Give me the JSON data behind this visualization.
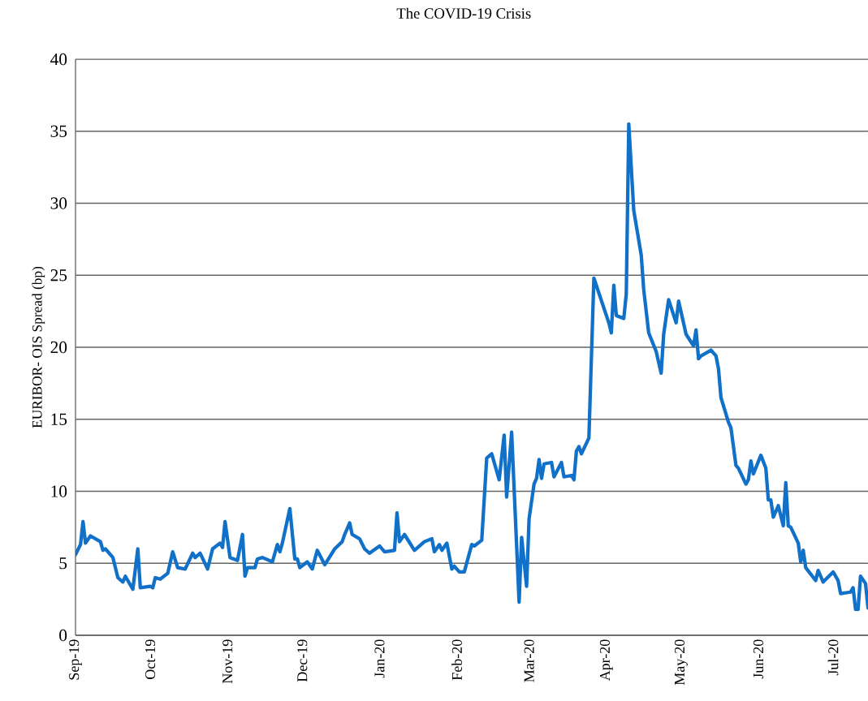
{
  "chart_data": {
    "type": "line",
    "title": "The COVID-19 Crisis",
    "ylabel": "EURIBOR- OIS Spread (bp)",
    "x": [
      "2019-09-01",
      "2019-09-03",
      "2019-09-04",
      "2019-09-05",
      "2019-09-07",
      "2019-09-10",
      "2019-09-11",
      "2019-09-12",
      "2019-09-13",
      "2019-09-16",
      "2019-09-18",
      "2019-09-20",
      "2019-09-21",
      "2019-09-24",
      "2019-09-26",
      "2019-09-27",
      "2019-10-01",
      "2019-10-02",
      "2019-10-03",
      "2019-10-05",
      "2019-10-08",
      "2019-10-10",
      "2019-10-12",
      "2019-10-15",
      "2019-10-18",
      "2019-10-19",
      "2019-10-21",
      "2019-10-24",
      "2019-10-26",
      "2019-10-29",
      "2019-10-30",
      "2019-10-31",
      "2019-11-02",
      "2019-11-05",
      "2019-11-07",
      "2019-11-08",
      "2019-11-09",
      "2019-11-12",
      "2019-11-13",
      "2019-11-15",
      "2019-11-19",
      "2019-11-21",
      "2019-11-22",
      "2019-11-23",
      "2019-11-26",
      "2019-11-28",
      "2019-11-29",
      "2019-11-30",
      "2019-12-03",
      "2019-12-05",
      "2019-12-07",
      "2019-12-10",
      "2019-12-14",
      "2019-12-17",
      "2019-12-18",
      "2019-12-20",
      "2019-12-21",
      "2019-12-24",
      "2019-12-26",
      "2019-12-28",
      "2020-01-01",
      "2020-01-03",
      "2020-01-07",
      "2020-01-08",
      "2020-01-09",
      "2020-01-11",
      "2020-01-15",
      "2020-01-19",
      "2020-01-22",
      "2020-01-23",
      "2020-01-25",
      "2020-01-26",
      "2020-01-28",
      "2020-01-30",
      "2020-01-31",
      "2020-02-02",
      "2020-02-04",
      "2020-02-07",
      "2020-02-08",
      "2020-02-11",
      "2020-02-13",
      "2020-02-15",
      "2020-02-18",
      "2020-02-20",
      "2020-02-21",
      "2020-02-23",
      "2020-02-26",
      "2020-02-27",
      "2020-02-29",
      "2020-03-01",
      "2020-03-03",
      "2020-03-04",
      "2020-03-05",
      "2020-03-06",
      "2020-03-07",
      "2020-03-10",
      "2020-03-11",
      "2020-03-14",
      "2020-03-15",
      "2020-03-18",
      "2020-03-19",
      "2020-03-20",
      "2020-03-21",
      "2020-03-22",
      "2020-03-25",
      "2020-03-27",
      "2020-04-02",
      "2020-04-03",
      "2020-04-04",
      "2020-04-05",
      "2020-04-08",
      "2020-04-09",
      "2020-04-10",
      "2020-04-12",
      "2020-04-15",
      "2020-04-16",
      "2020-04-18",
      "2020-04-21",
      "2020-04-23",
      "2020-04-24",
      "2020-04-26",
      "2020-04-29",
      "2020-04-30",
      "2020-05-03",
      "2020-05-06",
      "2020-05-07",
      "2020-05-08",
      "2020-05-09",
      "2020-05-13",
      "2020-05-15",
      "2020-05-16",
      "2020-05-17",
      "2020-05-20",
      "2020-05-21",
      "2020-05-23",
      "2020-05-24",
      "2020-05-27",
      "2020-05-28",
      "2020-05-29",
      "2020-05-30",
      "2020-06-02",
      "2020-06-04",
      "2020-06-05",
      "2020-06-06",
      "2020-06-07",
      "2020-06-09",
      "2020-06-11",
      "2020-06-12",
      "2020-06-13",
      "2020-06-14",
      "2020-06-17",
      "2020-06-18",
      "2020-06-19",
      "2020-06-20",
      "2020-06-24",
      "2020-06-25",
      "2020-06-27",
      "2020-07-01",
      "2020-07-03",
      "2020-07-04",
      "2020-07-08",
      "2020-07-09",
      "2020-07-10",
      "2020-07-11",
      "2020-07-12",
      "2020-07-14",
      "2020-07-15"
    ],
    "series": [
      {
        "color": "#1170c8",
        "values": [
          5.6,
          6.3,
          7.9,
          6.4,
          6.9,
          6.6,
          6.5,
          5.9,
          6.0,
          5.4,
          4.0,
          3.7,
          4.1,
          3.2,
          6.0,
          3.3,
          3.4,
          3.3,
          4.0,
          3.9,
          4.3,
          5.8,
          4.7,
          4.6,
          5.7,
          5.4,
          5.7,
          4.6,
          6.0,
          6.4,
          6.1,
          7.9,
          5.4,
          5.2,
          7.0,
          4.1,
          4.7,
          4.7,
          5.3,
          5.4,
          5.1,
          6.3,
          5.8,
          6.4,
          8.8,
          5.3,
          5.3,
          4.7,
          5.1,
          4.6,
          5.9,
          4.9,
          6.0,
          6.5,
          7.0,
          7.8,
          7.0,
          6.7,
          6.0,
          5.7,
          6.2,
          5.8,
          5.9,
          8.5,
          6.5,
          7.0,
          5.9,
          6.5,
          6.7,
          5.8,
          6.3,
          5.9,
          6.4,
          4.6,
          4.8,
          4.4,
          4.4,
          6.3,
          6.2,
          6.6,
          12.3,
          12.6,
          10.8,
          13.9,
          9.6,
          14.1,
          2.3,
          6.8,
          3.4,
          8.1,
          10.5,
          10.9,
          12.2,
          10.9,
          11.9,
          12.0,
          11.0,
          12.0,
          11.0,
          11.1,
          10.8,
          12.8,
          13.1,
          12.6,
          13.7,
          24.8,
          21.7,
          21.0,
          24.3,
          22.2,
          22.0,
          23.7,
          35.5,
          29.5,
          26.4,
          24.0,
          21.0,
          19.7,
          18.2,
          20.9,
          23.3,
          21.7,
          23.2,
          20.9,
          20.1,
          21.2,
          19.2,
          19.4,
          19.8,
          19.4,
          18.5,
          16.5,
          14.8,
          14.4,
          11.8,
          11.6,
          10.5,
          10.8,
          12.1,
          11.2,
          12.5,
          11.6,
          9.4,
          9.4,
          8.2,
          9.0,
          7.6,
          10.6,
          7.6,
          7.5,
          6.4,
          5.1,
          5.9,
          4.7,
          3.8,
          4.5,
          3.7,
          4.4,
          3.8,
          2.9,
          3.0,
          3.3,
          1.8,
          1.8,
          4.1,
          3.6,
          1.9
        ]
      }
    ],
    "xlim": [
      "2019-09-01",
      "2020-07-15"
    ],
    "xticks": [
      {
        "value": "2019-09-01",
        "label": "Sep-19"
      },
      {
        "value": "2019-10-01",
        "label": "Oct-19"
      },
      {
        "value": "2019-11-01",
        "label": "Nov-19"
      },
      {
        "value": "2019-12-01",
        "label": "Dec-19"
      },
      {
        "value": "2020-01-01",
        "label": "Jan-20"
      },
      {
        "value": "2020-02-01",
        "label": "Feb-20"
      },
      {
        "value": "2020-03-01",
        "label": "Mar-20"
      },
      {
        "value": "2020-04-01",
        "label": "Apr-20"
      },
      {
        "value": "2020-05-01",
        "label": "May-20"
      },
      {
        "value": "2020-06-01",
        "label": "Jun-20"
      },
      {
        "value": "2020-07-01",
        "label": "Jul-20"
      }
    ],
    "ylim": [
      0,
      40
    ],
    "yticks": [
      0,
      5,
      10,
      15,
      20,
      25,
      30,
      35,
      40
    ],
    "grid": "y",
    "line_style": "solid"
  }
}
